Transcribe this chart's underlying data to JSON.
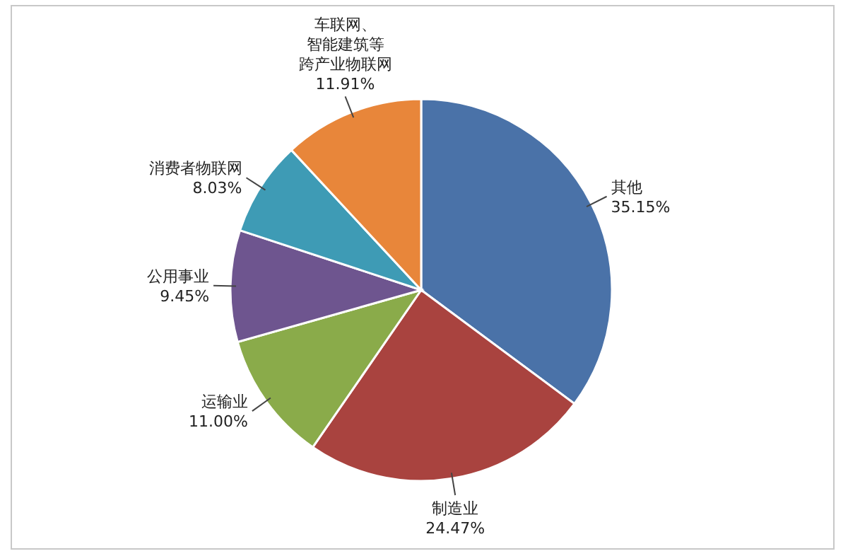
{
  "chart_data": {
    "type": "pie",
    "categories": [
      "其他",
      "制造业",
      "运输业",
      "公用事业",
      "消费者物联网",
      "车联网、智能建筑等跨产业物联网"
    ],
    "values": [
      35.15,
      24.47,
      11.0,
      9.45,
      8.03,
      11.91
    ],
    "value_labels": [
      "35.15%",
      "24.47%",
      "11.00%",
      "9.45%",
      "8.03%",
      "11.91%"
    ],
    "colors": [
      "#4a72a8",
      "#a9433f",
      "#8aab4a",
      "#6e558f",
      "#3e9bb5",
      "#e8863a"
    ]
  }
}
